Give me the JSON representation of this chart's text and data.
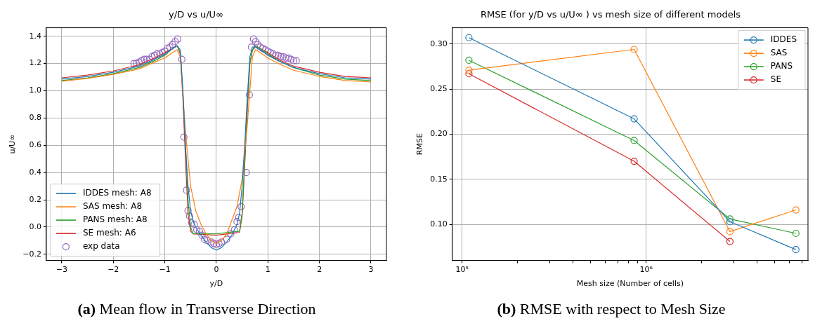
{
  "chart_data": [
    {
      "type": "line",
      "title": "y/D vs u/U∞",
      "xlabel": "y/D",
      "ylabel": "u/U∞",
      "xlim": [
        -3.3,
        3.3
      ],
      "ylim": [
        -0.245,
        1.462
      ],
      "xticks": [
        {
          "value": -3,
          "label": "−3"
        },
        {
          "value": -2,
          "label": "−2"
        },
        {
          "value": -1,
          "label": "−1"
        },
        {
          "value": 0,
          "label": "0"
        },
        {
          "value": 1,
          "label": "1"
        },
        {
          "value": 2,
          "label": "2"
        },
        {
          "value": 3,
          "label": "3"
        }
      ],
      "yticks": [
        {
          "value": -0.2,
          "label": "−0.2"
        },
        {
          "value": 0,
          "label": "0.0"
        },
        {
          "value": 0.2,
          "label": "0.2"
        },
        {
          "value": 0.4,
          "label": "0.4"
        },
        {
          "value": 0.6,
          "label": "0.6"
        },
        {
          "value": 0.8,
          "label": "0.8"
        },
        {
          "value": 1,
          "label": "1.0"
        },
        {
          "value": 1.2,
          "label": "1.2"
        },
        {
          "value": 1.4,
          "label": "1.4"
        }
      ],
      "grid": true,
      "legend": "bottom left",
      "annotations": [
        "(a) Mean flow in Transverse Direction"
      ],
      "series": [
        {
          "name": "IDDES mesh: A8",
          "color": "#1f77b4",
          "x": [
            -3,
            -2.5,
            -2,
            -1.5,
            -1.2,
            -1,
            -0.85,
            -0.76,
            -0.7,
            -0.65,
            -0.6,
            -0.55,
            -0.5,
            -0.45,
            -0.4,
            -0.3,
            -0.2,
            -0.1,
            0,
            0.1,
            0.2,
            0.3,
            0.4,
            0.45,
            0.5,
            0.55,
            0.6,
            0.65,
            0.7,
            0.76,
            0.85,
            1,
            1.2,
            1.5,
            2,
            2.5,
            3
          ],
          "values": [
            1.085,
            1.105,
            1.135,
            1.18,
            1.23,
            1.27,
            1.31,
            1.33,
            1.3,
            1.0,
            0.6,
            0.3,
            0.12,
            0.04,
            0.0,
            -0.06,
            -0.11,
            -0.15,
            -0.17,
            -0.15,
            -0.11,
            -0.06,
            0.02,
            0.1,
            0.3,
            0.6,
            0.95,
            1.25,
            1.32,
            1.32,
            1.3,
            1.26,
            1.22,
            1.17,
            1.125,
            1.095,
            1.085
          ]
        },
        {
          "name": "SAS mesh: A8",
          "color": "#ff7f0e",
          "x": [
            -3,
            -2.5,
            -2,
            -1.5,
            -1.2,
            -1,
            -0.85,
            -0.76,
            -0.7,
            -0.6,
            -0.5,
            -0.4,
            -0.3,
            -0.2,
            -0.1,
            0,
            0.1,
            0.2,
            0.3,
            0.4,
            0.5,
            0.6,
            0.7,
            0.76,
            0.85,
            1,
            1.2,
            1.5,
            2,
            2.5,
            3
          ],
          "values": [
            1.07,
            1.09,
            1.12,
            1.16,
            1.21,
            1.24,
            1.28,
            1.3,
            1.25,
            0.7,
            0.3,
            0.12,
            0.02,
            -0.05,
            -0.1,
            -0.12,
            -0.1,
            -0.05,
            0.05,
            0.15,
            0.35,
            0.75,
            1.25,
            1.3,
            1.28,
            1.24,
            1.2,
            1.15,
            1.105,
            1.075,
            1.065
          ]
        },
        {
          "name": "PANS mesh: A8",
          "color": "#2ca02c",
          "x": [
            -3,
            -2.5,
            -2,
            -1.5,
            -1.2,
            -1,
            -0.85,
            -0.76,
            -0.7,
            -0.65,
            -0.6,
            -0.55,
            -0.5,
            -0.45,
            0,
            0.45,
            0.5,
            0.55,
            0.6,
            0.65,
            0.7,
            0.76,
            0.85,
            1,
            1.2,
            1.5,
            2,
            2.5,
            3
          ],
          "values": [
            1.075,
            1.095,
            1.125,
            1.17,
            1.22,
            1.26,
            1.31,
            1.33,
            1.28,
            1.0,
            0.6,
            0.2,
            0.0,
            -0.05,
            -0.05,
            -0.03,
            0.1,
            0.5,
            0.9,
            1.2,
            1.3,
            1.33,
            1.31,
            1.27,
            1.22,
            1.17,
            1.115,
            1.085,
            1.075
          ]
        },
        {
          "name": "SE mesh: A6",
          "color": "#d62728",
          "x": [
            -3,
            -2.5,
            -2,
            -1.5,
            -1.2,
            -1,
            -0.85,
            -0.76,
            -0.7,
            -0.65,
            -0.6,
            -0.55,
            -0.5,
            -0.45,
            0,
            0.45,
            0.5,
            0.55,
            0.6,
            0.65,
            0.7,
            0.76,
            0.85,
            1,
            1.2,
            1.5,
            2,
            2.5,
            3
          ],
          "values": [
            1.095,
            1.115,
            1.145,
            1.19,
            1.24,
            1.28,
            1.31,
            1.33,
            1.27,
            0.95,
            0.5,
            0.1,
            -0.03,
            -0.05,
            -0.06,
            -0.04,
            0.08,
            0.45,
            0.85,
            1.2,
            1.3,
            1.33,
            1.31,
            1.28,
            1.23,
            1.18,
            1.135,
            1.105,
            1.095
          ]
        },
        {
          "name": "exp data",
          "type": "scatter",
          "marker": "circle",
          "color": "#9467bd",
          "x": [
            -1.6,
            -1.55,
            -1.5,
            -1.45,
            -1.4,
            -1.35,
            -1.3,
            -1.25,
            -1.2,
            -1.15,
            -1.1,
            -1.05,
            -1,
            -0.95,
            -0.9,
            -0.85,
            -0.8,
            -0.75,
            -0.67,
            -0.63,
            -0.58,
            -0.55,
            -0.52,
            -0.48,
            -0.43,
            -0.38,
            -0.33,
            -0.28,
            -0.23,
            -0.18,
            -0.1,
            -0.05,
            0,
            0.05,
            0.1,
            0.2,
            0.28,
            0.35,
            0.4,
            0.43,
            0.48,
            0.58,
            0.64,
            0.68,
            0.72,
            0.76,
            0.8,
            0.85,
            0.9,
            0.95,
            1,
            1.05,
            1.1,
            1.15,
            1.2,
            1.25,
            1.3,
            1.35,
            1.4,
            1.45,
            1.5,
            1.55
          ],
          "values": [
            1.2,
            1.2,
            1.21,
            1.22,
            1.23,
            1.23,
            1.23,
            1.25,
            1.26,
            1.27,
            1.27,
            1.28,
            1.29,
            1.31,
            1.32,
            1.34,
            1.36,
            1.38,
            1.23,
            0.66,
            0.27,
            0.12,
            0.08,
            0.03,
            0.02,
            -0.02,
            -0.03,
            -0.06,
            -0.09,
            -0.1,
            -0.11,
            -0.12,
            -0.13,
            -0.12,
            -0.11,
            -0.09,
            -0.05,
            -0.02,
            0.04,
            0.07,
            0.15,
            0.4,
            0.97,
            1.32,
            1.38,
            1.36,
            1.34,
            1.32,
            1.31,
            1.3,
            1.29,
            1.28,
            1.27,
            1.26,
            1.26,
            1.25,
            1.25,
            1.24,
            1.24,
            1.23,
            1.22,
            1.22
          ]
        }
      ]
    },
    {
      "type": "line",
      "title": "RMSE (for y/D vs u/U∞ ) vs mesh size of different models",
      "xlabel": "Mesh size (Number of cells)",
      "ylabel": "RMSE",
      "log": "x",
      "marker": "circle",
      "xlim": [
        88500,
        7560000
      ],
      "ylim": [
        0.06,
        0.318
      ],
      "xticks": [
        {
          "value": 100000,
          "label": "10⁵"
        },
        {
          "value": 200000,
          "label": null
        },
        {
          "value": 300000,
          "label": null
        },
        {
          "value": 400000,
          "label": null
        },
        {
          "value": 500000,
          "label": null
        },
        {
          "value": 600000,
          "label": null
        },
        {
          "value": 700000,
          "label": null
        },
        {
          "value": 800000,
          "label": null
        },
        {
          "value": 900000,
          "label": null
        },
        {
          "value": 1000000,
          "label": "10⁶"
        },
        {
          "value": 2000000,
          "label": null
        },
        {
          "value": 3000000,
          "label": null
        },
        {
          "value": 4000000,
          "label": null
        },
        {
          "value": 5000000,
          "label": null
        },
        {
          "value": 6000000,
          "label": null
        },
        {
          "value": 7000000,
          "label": null
        }
      ],
      "yticks": [
        {
          "value": 0.1,
          "label": "0.10"
        },
        {
          "value": 0.15,
          "label": "0.15"
        },
        {
          "value": 0.2,
          "label": "0.20"
        },
        {
          "value": 0.25,
          "label": "0.25"
        },
        {
          "value": 0.3,
          "label": "0.30"
        }
      ],
      "grid": true,
      "legend": "top right",
      "annotations": [
        "(b) RMSE with respect to Mesh Size"
      ],
      "x": [
        109000,
        860000,
        2850000,
        6500000
      ],
      "series": [
        {
          "name": "IDDES",
          "color": "#1f77b4",
          "values": [
            0.307,
            0.217,
            0.103,
            0.072
          ]
        },
        {
          "name": "SAS",
          "color": "#ff7f0e",
          "values": [
            0.271,
            0.294,
            0.092,
            0.116
          ]
        },
        {
          "name": "PANS",
          "color": "#2ca02c",
          "values": [
            0.282,
            0.193,
            0.106,
            0.09
          ]
        },
        {
          "name": "SE",
          "color": "#d62728",
          "values": [
            0.267,
            0.17,
            0.081,
            null
          ]
        }
      ]
    }
  ]
}
